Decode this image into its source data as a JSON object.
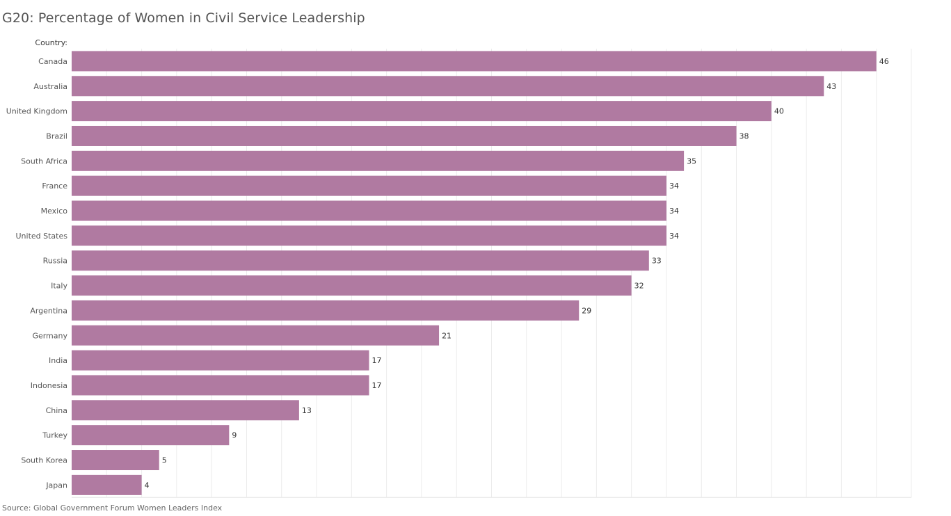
{
  "chart_data": {
    "type": "bar",
    "orientation": "horizontal",
    "title": "G20: Percentage of Women in Civil Service Leadership",
    "category_field_label": "Country:",
    "categories": [
      "Canada",
      "Australia",
      "United Kingdom",
      "Brazil",
      "South Africa",
      "France",
      "Mexico",
      "United States",
      "Russia",
      "Italy",
      "Argentina",
      "Germany",
      "India",
      "Indonesia",
      "China",
      "Turkey",
      "South Korea",
      "Japan"
    ],
    "values": [
      46,
      43,
      40,
      38,
      35,
      34,
      34,
      34,
      33,
      32,
      29,
      21,
      17,
      17,
      13,
      9,
      5,
      4
    ],
    "xlabel": "",
    "ylabel": "Country",
    "xlim": [
      0,
      48
    ],
    "grid_step": 2,
    "grid": true,
    "data_labels": true,
    "bar_color": "#b07aa1",
    "gridline_color": "#ececec",
    "source": "Source: Global Government Forum Women Leaders Index"
  }
}
